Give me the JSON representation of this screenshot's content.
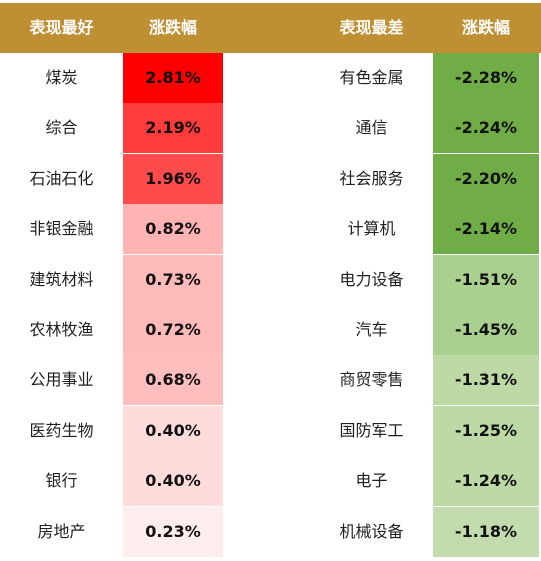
{
  "headers": {
    "best_label": "表现最好",
    "change_label_left": "涨跌幅",
    "worst_label": "表现最差",
    "change_label_right": "涨跌幅"
  },
  "best": [
    {
      "name": "煤炭",
      "change": "2.81%",
      "color": "#ff0000"
    },
    {
      "name": "综合",
      "change": "2.19%",
      "color": "#ff3b3b"
    },
    {
      "name": "石油石化",
      "change": "1.96%",
      "color": "#ff4b4b"
    },
    {
      "name": "非银金融",
      "change": "0.82%",
      "color": "#ffb3b3"
    },
    {
      "name": "建筑材料",
      "change": "0.73%",
      "color": "#ffbaba"
    },
    {
      "name": "农林牧渔",
      "change": "0.72%",
      "color": "#ffbaba"
    },
    {
      "name": "公用事业",
      "change": "0.68%",
      "color": "#ffbebe"
    },
    {
      "name": "医药生物",
      "change": "0.40%",
      "color": "#ffdcdc"
    },
    {
      "name": "银行",
      "change": "0.40%",
      "color": "#ffdcdc"
    },
    {
      "name": "房地产",
      "change": "0.23%",
      "color": "#ffeded"
    }
  ],
  "worst": [
    {
      "name": "有色金属",
      "change": "-2.28%",
      "color": "#70ad47"
    },
    {
      "name": "通信",
      "change": "-2.24%",
      "color": "#70ad47"
    },
    {
      "name": "社会服务",
      "change": "-2.20%",
      "color": "#70ad47"
    },
    {
      "name": "计算机",
      "change": "-2.14%",
      "color": "#70ad47"
    },
    {
      "name": "电力设备",
      "change": "-1.51%",
      "color": "#a9d08e"
    },
    {
      "name": "汽车",
      "change": "-1.45%",
      "color": "#a9d08e"
    },
    {
      "name": "商贸零售",
      "change": "-1.31%",
      "color": "#bcd9a6"
    },
    {
      "name": "国防军工",
      "change": "-1.25%",
      "color": "#bcd9a6"
    },
    {
      "name": "电子",
      "change": "-1.24%",
      "color": "#bcd9a6"
    },
    {
      "name": "机械设备",
      "change": "-1.18%",
      "color": "#c2dcad"
    }
  ]
}
